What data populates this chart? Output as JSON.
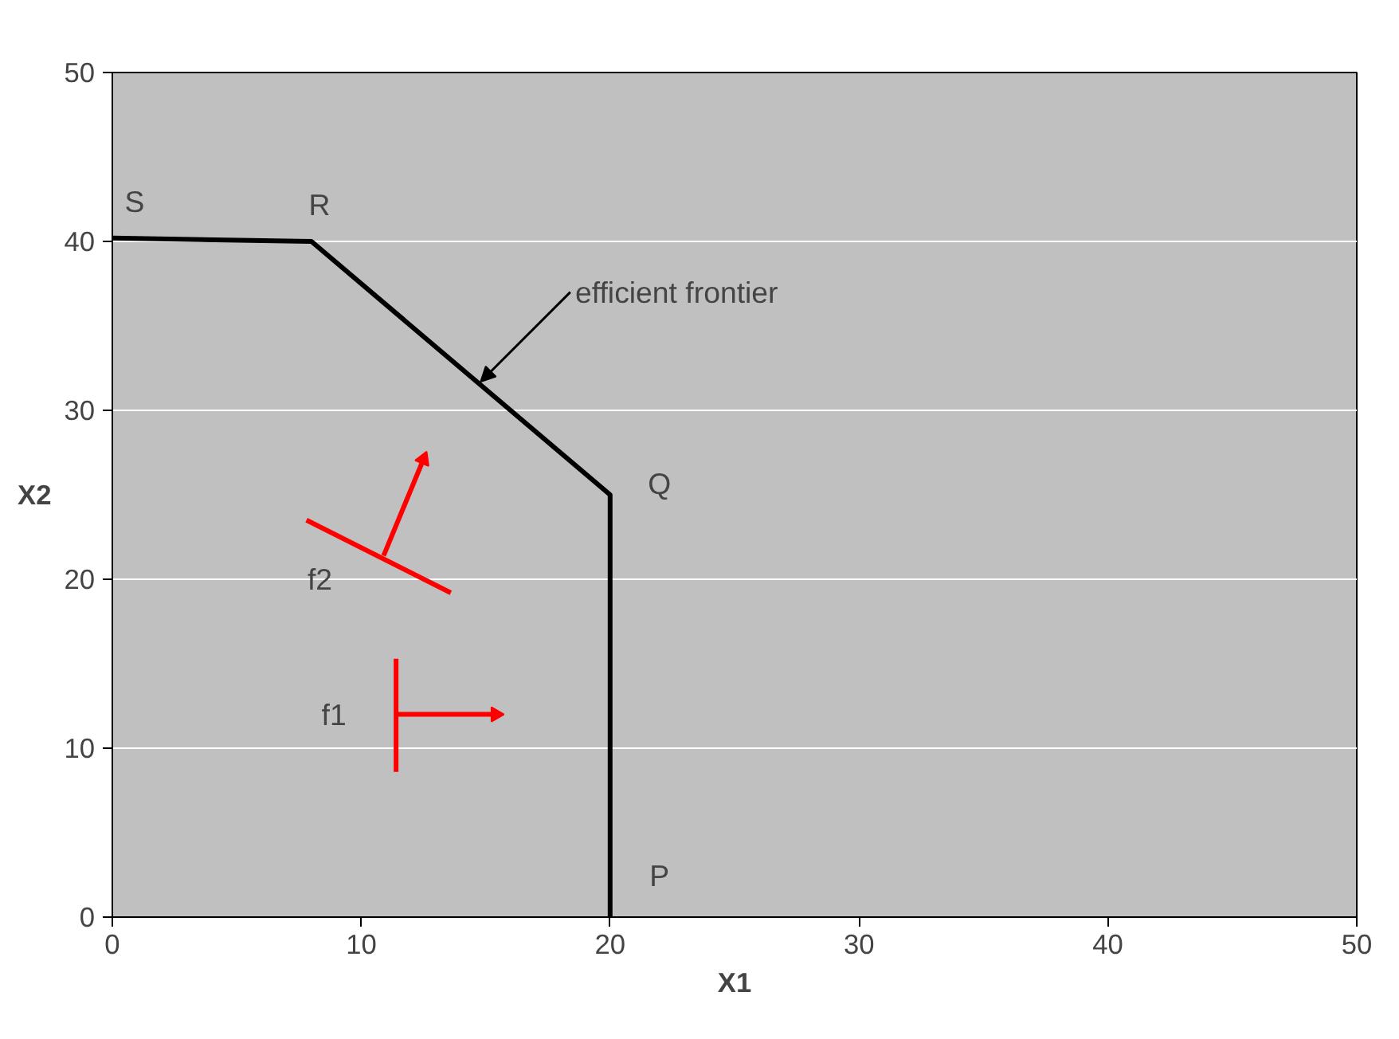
{
  "chart_data": {
    "type": "line",
    "xlabel": "X1",
    "ylabel": "X2",
    "xlim": [
      0,
      50
    ],
    "ylim": [
      0,
      50
    ],
    "xticks": [
      0,
      10,
      20,
      30,
      40,
      50
    ],
    "yticks": [
      0,
      10,
      20,
      30,
      40,
      50
    ],
    "grid": "y",
    "series": [
      {
        "color": "#000000",
        "x": [
          0,
          8,
          20,
          20
        ],
        "values": [
          40.2,
          40,
          25,
          0
        ]
      },
      {
        "color": "#ff0000",
        "x": [
          11.4,
          11.4
        ],
        "values": [
          8.6,
          15.3
        ]
      },
      {
        "color": "#ff0000",
        "x": [
          11.4,
          15.4
        ],
        "values": [
          12,
          12
        ],
        "marker": "triangle"
      },
      {
        "color": "#ff0000",
        "x": [
          7.8,
          13.6
        ],
        "values": [
          23.5,
          19.2
        ]
      },
      {
        "color": "#ff0000",
        "x": [
          10.9,
          12.5
        ],
        "values": [
          21.4,
          27.1
        ],
        "marker": "triangle"
      }
    ],
    "annotations": [
      {
        "text": "S",
        "x": 0,
        "y": 40.2
      },
      {
        "text": "R",
        "x": 8,
        "y": 40
      },
      {
        "text": "Q",
        "x": 20,
        "y": 25
      },
      {
        "text": "P",
        "x": 20,
        "y": 0
      },
      {
        "text": "f2",
        "x": 10.9,
        "y": 21.4
      },
      {
        "text": "f1",
        "x": 11.4,
        "y": 12
      },
      {
        "text": "efficient frontier",
        "x": 14.8,
        "y": 31.7
      }
    ]
  }
}
